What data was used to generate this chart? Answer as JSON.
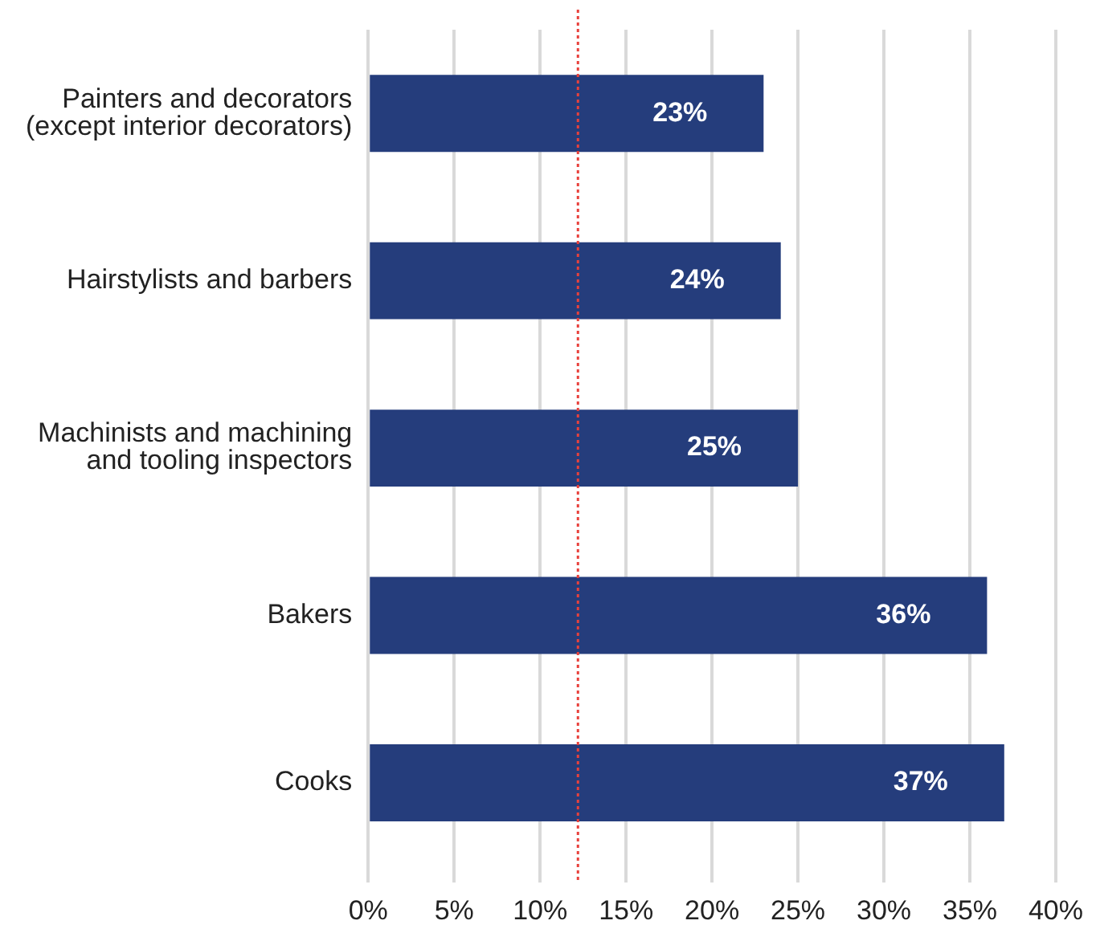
{
  "chart_data": {
    "type": "bar",
    "orientation": "horizontal",
    "categories": [
      "Painters and decorators (except interior decorators)",
      "Hairstylists and barbers",
      "Machinists and machining and tooling inspectors",
      "Bakers",
      "Cooks"
    ],
    "values": [
      23,
      24,
      25,
      36,
      37
    ],
    "color": "#253d7c",
    "value_labels": [
      "23%",
      "24%",
      "25%",
      "36%",
      "37%"
    ],
    "xlim": [
      0,
      40
    ],
    "xticks": [
      {
        "value": 0,
        "label": "0%"
      },
      {
        "value": 5,
        "label": "5%"
      },
      {
        "value": 10,
        "label": "10%"
      },
      {
        "value": 15,
        "label": "15%"
      },
      {
        "value": 20,
        "label": "20%"
      },
      {
        "value": 25,
        "label": "25%"
      },
      {
        "value": 30,
        "label": "30%"
      },
      {
        "value": 35,
        "label": "35%"
      },
      {
        "value": 40,
        "label": "40%"
      }
    ],
    "grid": "x",
    "legend": false,
    "ref_lines": [
      {
        "axis": "x",
        "value": 12.2,
        "color": "#e8413c",
        "line_style": "dotted"
      }
    ]
  }
}
